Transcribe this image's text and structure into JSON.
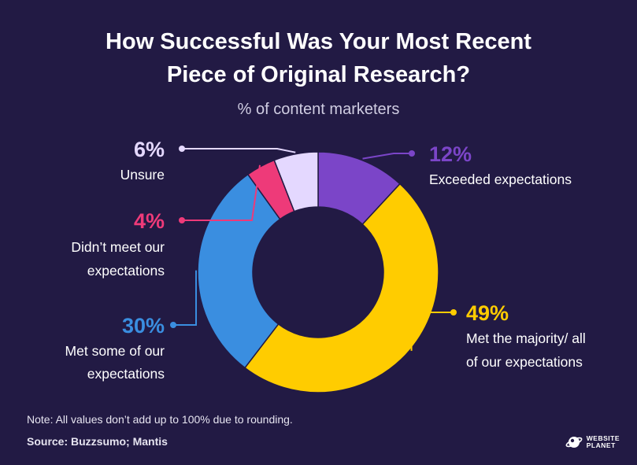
{
  "title_line1": "How Successful Was Your Most Recent",
  "title_line2": "Piece of Original Research?",
  "subtitle": "% of content marketers",
  "note": "Note: All values don’t add up to 100% due to rounding.",
  "source": "Source: Buzzsumo; Mantis",
  "brand": {
    "line1": "WEBSITE",
    "line2": "PLANET"
  },
  "colors": {
    "background": "#221a44",
    "exceeded": "#7b45c8",
    "majority": "#ffcc00",
    "some": "#3a8ee0",
    "not_met": "#ee3a79",
    "unsure": "#e4d8ff"
  },
  "chart_data": {
    "type": "pie",
    "variant": "donut",
    "unit": "%",
    "slices": [
      {
        "label": "Exceeded expectations",
        "value": 12,
        "display": "12%",
        "color": "#7b45c8"
      },
      {
        "label": "Met the majority/ all of our expectations",
        "value": 49,
        "display": "49%",
        "color": "#ffcc00"
      },
      {
        "label": "Met some of our expectations",
        "value": 30,
        "display": "30%",
        "color": "#3a8ee0"
      },
      {
        "label": "Didn’t meet our expectations",
        "value": 4,
        "display": "4%",
        "color": "#ee3a79"
      },
      {
        "label": "Unsure",
        "value": 6,
        "display": "6%",
        "color": "#e4d8ff"
      }
    ]
  }
}
